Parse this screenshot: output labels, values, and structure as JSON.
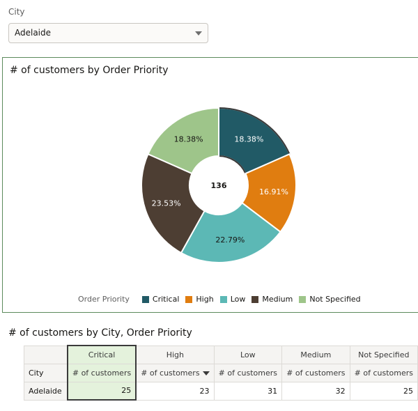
{
  "filter": {
    "label": "City",
    "value": "Adelaide"
  },
  "chart_panel": {
    "title": "# of customers by Order Priority",
    "center_total": "136",
    "legend_title": "Order Priority"
  },
  "chart_data": {
    "type": "pie",
    "title": "# of customers by Order Priority",
    "legend_title": "Order Priority",
    "legend_placement": "bottom",
    "center_label": "136",
    "categories": [
      "Critical",
      "High",
      "Low",
      "Medium",
      "Not Specified"
    ],
    "values": [
      25,
      23,
      31,
      32,
      25
    ],
    "percent_labels": [
      "18.38%",
      "16.91%",
      "22.79%",
      "23.53%",
      "18.38%"
    ],
    "colors": [
      "#215a66",
      "#e07d10",
      "#5cb8b5",
      "#4d3e33",
      "#9ec58a"
    ],
    "selected": "Critical"
  },
  "table": {
    "title": "# of customers by City, Order Priority",
    "row_header": "City",
    "columns": [
      {
        "label": "Critical",
        "measure": "# of customers"
      },
      {
        "label": "High",
        "measure": "# of customers"
      },
      {
        "label": "Low",
        "measure": "# of customers"
      },
      {
        "label": "Medium",
        "measure": "# of customers"
      },
      {
        "label": "Not Specified",
        "measure": "# of customers"
      }
    ],
    "rows": [
      {
        "label": "Adelaide",
        "values": [
          "25",
          "23",
          "31",
          "32",
          "25"
        ]
      }
    ]
  }
}
